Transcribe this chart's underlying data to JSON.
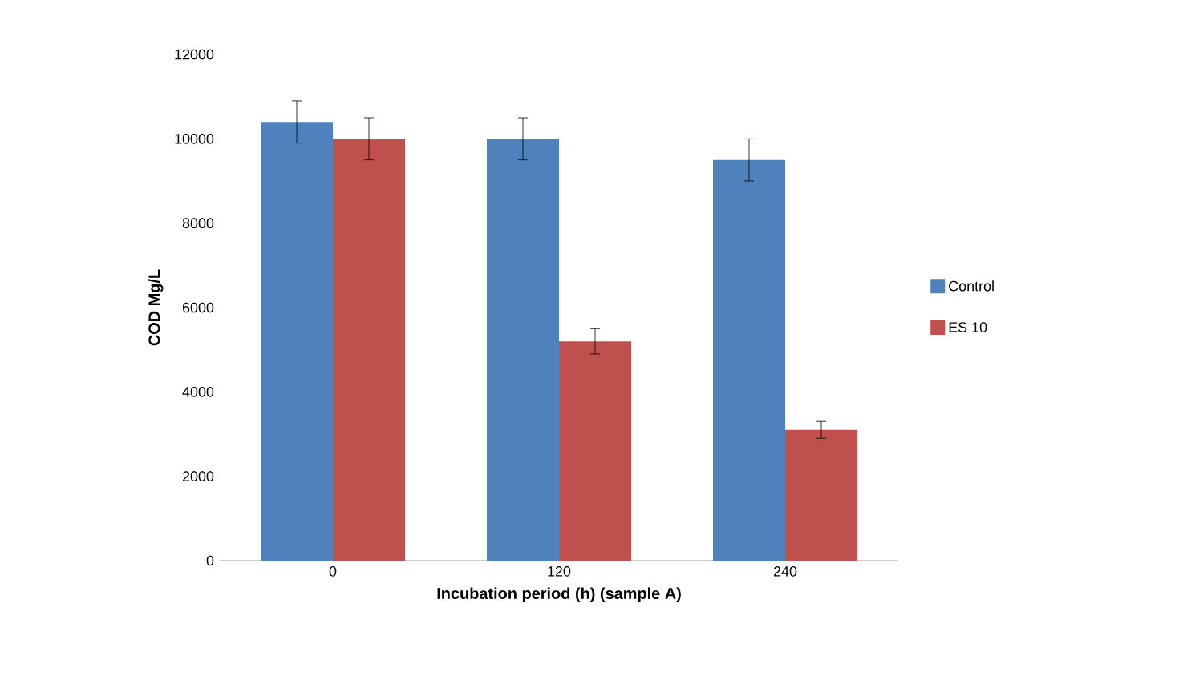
{
  "chart_data": {
    "type": "bar",
    "xlabel": "Incubation period (h) (sample A)",
    "ylabel": "COD Mg/L",
    "categories": [
      "0",
      "120",
      "240"
    ],
    "series": [
      {
        "name": "Control",
        "color": "#4f81bd",
        "values": [
          10400,
          10000,
          9500
        ],
        "errors": [
          500,
          500,
          500
        ]
      },
      {
        "name": "ES 10",
        "color": "#c0504d",
        "values": [
          10000,
          5200,
          3100
        ],
        "errors": [
          500,
          300,
          200
        ]
      }
    ],
    "ylim": [
      0,
      12000
    ],
    "yticks": [
      0,
      2000,
      4000,
      6000,
      8000,
      10000,
      12000
    ],
    "grid": false,
    "legend": "right"
  }
}
